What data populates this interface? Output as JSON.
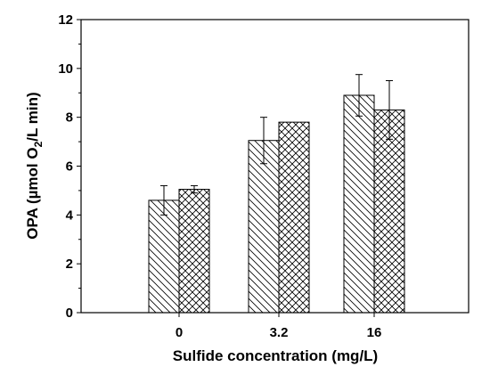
{
  "chart_data": {
    "type": "bar",
    "xlabel": "Sulfide concentration (mg/L)",
    "ylabel": {
      "prefix": "OPA (µmol O",
      "subscript": "2",
      "suffix": "/L min)"
    },
    "categories": [
      "0",
      "3.2",
      "16"
    ],
    "series": [
      {
        "values": [
          4.6,
          7.05,
          8.9
        ],
        "errors": [
          0.6,
          0.95,
          0.85
        ],
        "pattern": "diagonal-hatch"
      },
      {
        "values": [
          5.05,
          7.8,
          8.3
        ],
        "errors": [
          0.15,
          0.0,
          1.2
        ],
        "pattern": "cross-hatch"
      }
    ],
    "ylim": [
      0,
      12
    ],
    "yticks": [
      "0",
      "2",
      "4",
      "6",
      "8",
      "10",
      "12"
    ],
    "grid": false,
    "legend": "none"
  }
}
